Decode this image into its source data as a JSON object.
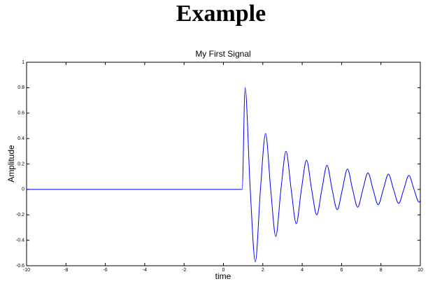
{
  "heading": "Example",
  "chart_data": {
    "type": "line",
    "title": "My First Signal",
    "x_label": "time",
    "y_label": "Amplitude",
    "xlim": [
      -10,
      10
    ],
    "xticks": [
      -10,
      -8,
      -6,
      -4,
      -2,
      0,
      2,
      4,
      6,
      8,
      10
    ],
    "ylim": [
      -0.6,
      1
    ],
    "yticks": [
      -0.6,
      -0.4,
      -0.2,
      0,
      0.2,
      0.4,
      0.6,
      0.8,
      1
    ],
    "grid": false,
    "series": [
      {
        "color": "#0000ff",
        "x": [
          -10,
          0.95,
          1.1,
          1.36,
          1.62,
          1.88,
          2.14,
          2.4,
          2.66,
          2.92,
          3.18,
          3.44,
          3.7,
          3.96,
          4.22,
          4.48,
          4.74,
          5.0,
          5.26,
          5.52,
          5.78,
          6.04,
          6.3,
          6.56,
          6.82,
          7.08,
          7.34,
          7.6,
          7.86,
          8.12,
          8.38,
          8.64,
          8.9,
          9.16,
          9.42,
          9.68,
          9.94,
          10
        ],
        "values": [
          0,
          0,
          0.8,
          0,
          -0.57,
          0,
          0.44,
          0,
          -0.37,
          0,
          0.3,
          0,
          -0.27,
          0,
          0.23,
          0,
          -0.2,
          0,
          0.19,
          0,
          -0.16,
          0,
          0.16,
          0,
          -0.14,
          0,
          0.13,
          0,
          -0.12,
          0,
          0.12,
          0,
          -0.11,
          0,
          0.11,
          0,
          -0.1,
          -0.09
        ]
      }
    ]
  }
}
